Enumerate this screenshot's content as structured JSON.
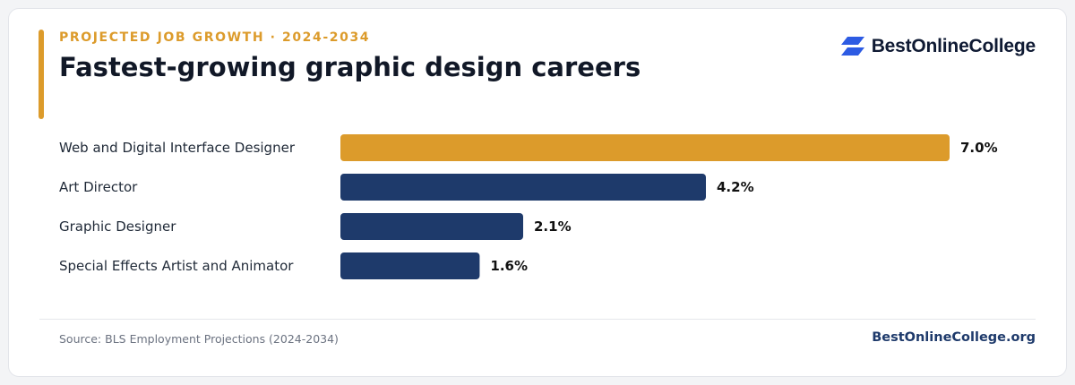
{
  "header": {
    "eyebrow": "PROJECTED JOB GROWTH · 2024-2034",
    "title": "Fastest-growing graphic design careers"
  },
  "brand": {
    "name": "BestOnlineCollege",
    "icon": "brand-logo-icon",
    "icon_color": "#2d5be3"
  },
  "footer": {
    "source": "Source: BLS Employment Projections (2024-2034)",
    "site": "BestOnlineCollege.org"
  },
  "colors": {
    "highlight": "#dc9b2b",
    "bar": "#1e3a6b",
    "label": "#1f2937",
    "value": "#111111"
  },
  "chart_data": {
    "type": "bar",
    "orientation": "horizontal",
    "categories": [
      "Web and Digital Interface Designer",
      "Art Director",
      "Graphic Designer",
      "Special Effects Artist and Animator"
    ],
    "values": [
      7.0,
      4.2,
      2.1,
      1.6
    ],
    "value_labels": [
      "7.0%",
      "4.2%",
      "2.1%",
      "1.6%"
    ],
    "xlim": [
      0,
      7.0
    ],
    "highlighted_index": 0,
    "grid": false,
    "legend": "none"
  }
}
